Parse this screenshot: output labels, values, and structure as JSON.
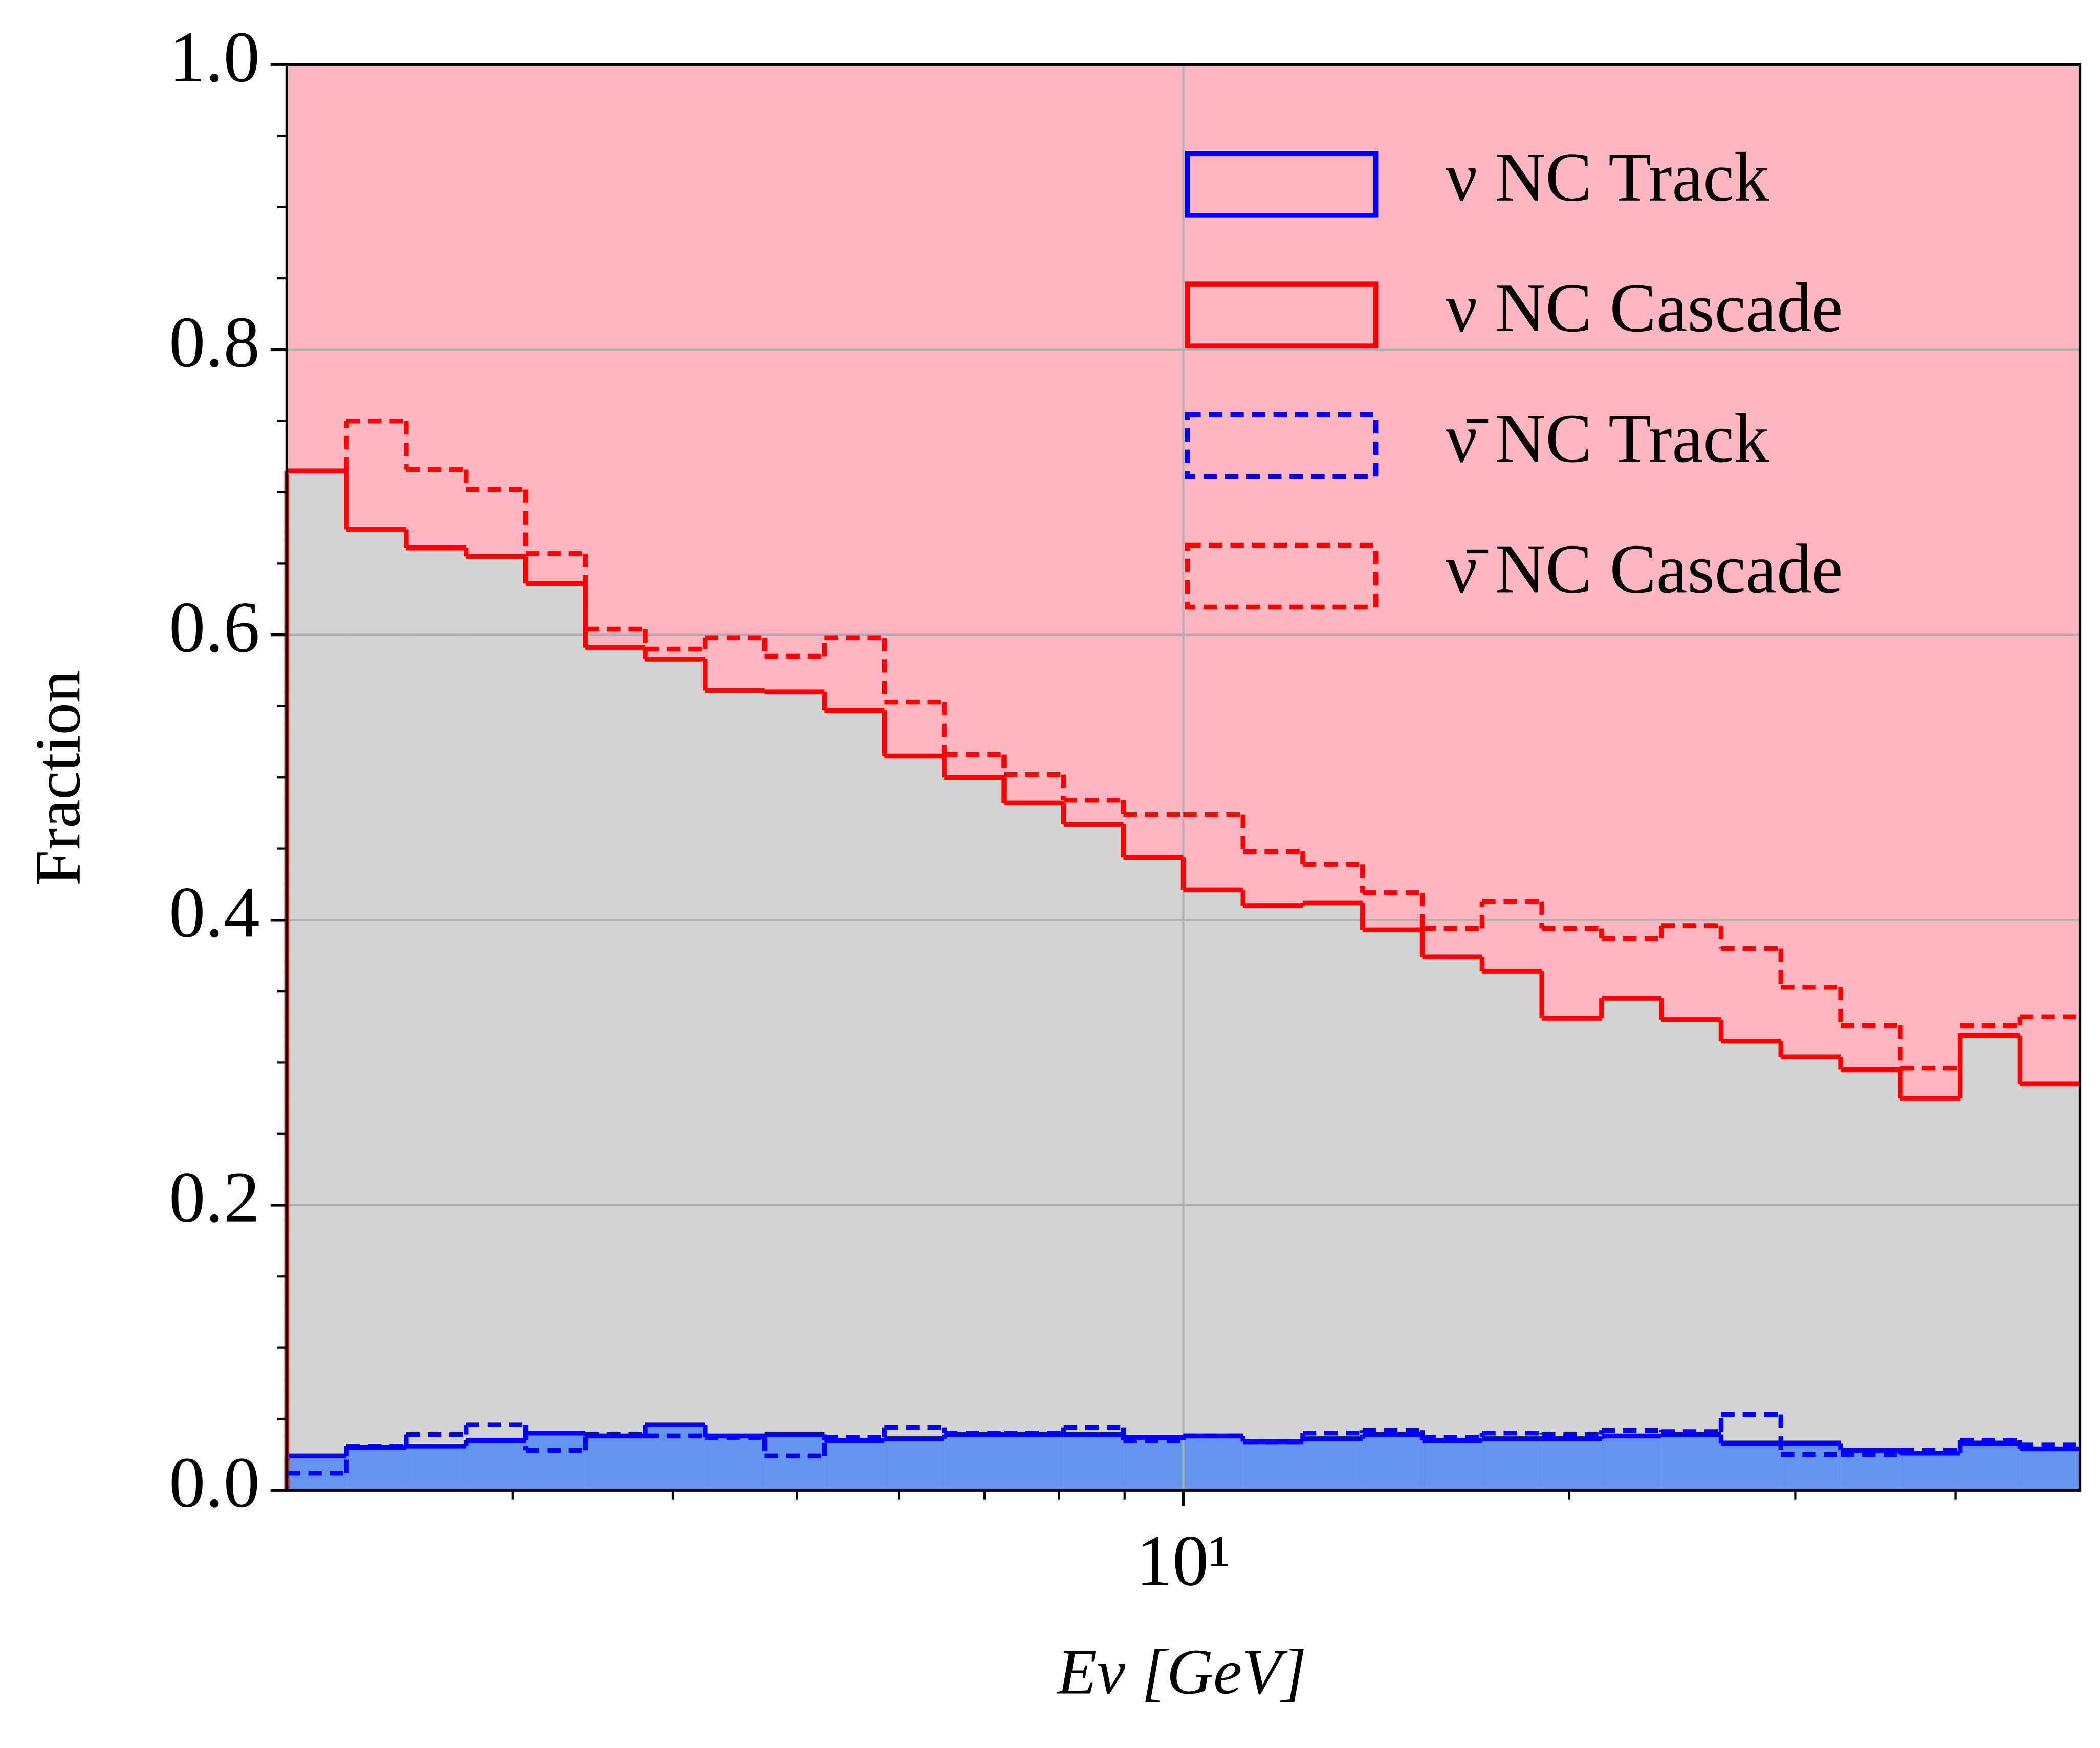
{
  "chart_data": {
    "type": "step_histogram",
    "xlabel": "Eν [GeV]",
    "ylabel": "Fraction",
    "xscale": "log",
    "xlim": [
      2,
      50
    ],
    "ylim": [
      0,
      1
    ],
    "xticks": [
      {
        "value": 10,
        "label": "10¹"
      }
    ],
    "xminorticks": [
      3,
      4,
      5,
      6,
      7,
      8,
      9,
      20,
      30,
      40
    ],
    "yticks": [
      {
        "value": 0,
        "label": "0.0"
      },
      0.2,
      0.4,
      0.6,
      0.8,
      {
        "value": 1,
        "label": "1.0"
      }
    ],
    "yminorticks": [
      0.05,
      0.1,
      0.15,
      0.25,
      0.3,
      0.35,
      0.45,
      0.5,
      0.55,
      0.65,
      0.7,
      0.75,
      0.85,
      0.9,
      0.95
    ],
    "grid": true,
    "legend": "upper right",
    "background_color": "#ffb6c1",
    "bins": [
      2,
      2.2264,
      2.4785,
      2.7592,
      3.0716,
      3.4194,
      3.8066,
      4.2376,
      4.7175,
      5.2517,
      5.848,
      6.51,
      7.248,
      8.068,
      8.982,
      10.0,
      11.133,
      12.393,
      13.797,
      15.359,
      17.099,
      19.035,
      21.19,
      23.59,
      26.261,
      29.235,
      32.546,
      36.231,
      40.334,
      44.902,
      50
    ],
    "series": [
      {
        "name": "ν NC Track",
        "color": "#0000ff",
        "linestyle": "solid",
        "fill": "#6495ed",
        "values": [
          0.024,
          0.03,
          0.031,
          0.035,
          0.04,
          0.038,
          0.046,
          0.038,
          0.039,
          0.035,
          0.036,
          0.039,
          0.039,
          0.039,
          0.037,
          0.038,
          0.034,
          0.036,
          0.039,
          0.035,
          0.036,
          0.036,
          0.038,
          0.039,
          0.033,
          0.033,
          0.028,
          0.026,
          0.033,
          0.029
        ]
      },
      {
        "name": "ν NC Cascade",
        "color": "#ff0000",
        "linestyle": "solid",
        "fill": "#d3d3d3",
        "values": [
          0.715,
          0.674,
          0.661,
          0.655,
          0.636,
          0.591,
          0.583,
          0.561,
          0.56,
          0.547,
          0.515,
          0.5,
          0.482,
          0.467,
          0.444,
          0.421,
          0.41,
          0.412,
          0.393,
          0.374,
          0.364,
          0.331,
          0.345,
          0.33,
          0.315,
          0.304,
          0.295,
          0.275,
          0.319,
          0.285
        ]
      },
      {
        "name": "ν̄ NC Track",
        "color": "#0000ff",
        "linestyle": "dashed",
        "values": [
          0.012,
          0.031,
          0.039,
          0.046,
          0.028,
          0.039,
          0.038,
          0.037,
          0.024,
          0.037,
          0.044,
          0.04,
          0.04,
          0.044,
          0.035,
          0.038,
          0.034,
          0.04,
          0.042,
          0.037,
          0.04,
          0.039,
          0.042,
          0.041,
          0.053,
          0.025,
          0.025,
          0.028,
          0.035,
          0.032
        ]
      },
      {
        "name": "ν̄ NC Cascade",
        "color": "#ff0000",
        "linestyle": "dashed",
        "values": [
          0.715,
          0.75,
          0.716,
          0.702,
          0.657,
          0.604,
          0.59,
          0.598,
          0.585,
          0.598,
          0.553,
          0.516,
          0.502,
          0.484,
          0.474,
          0.474,
          0.448,
          0.439,
          0.419,
          0.394,
          0.413,
          0.394,
          0.387,
          0.396,
          0.38,
          0.353,
          0.326,
          0.296,
          0.326,
          0.332
        ]
      }
    ]
  }
}
